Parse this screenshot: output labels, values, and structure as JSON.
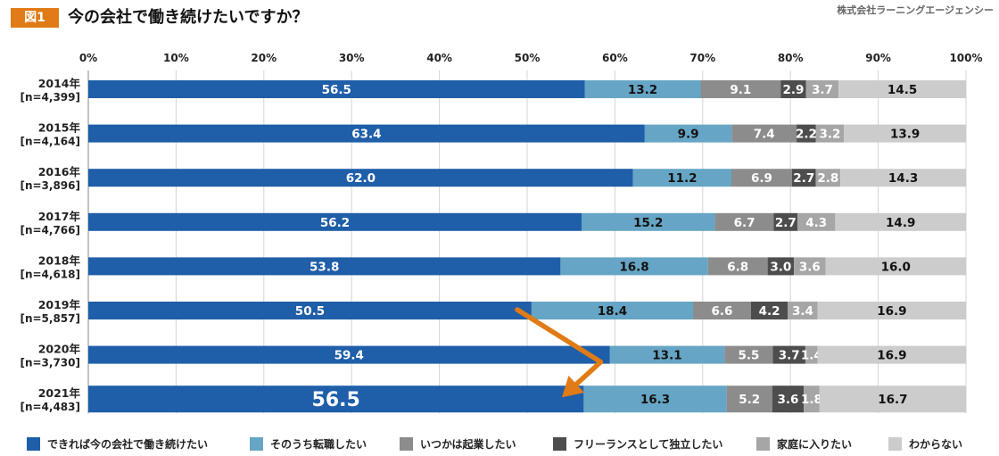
{
  "header": {
    "figure_label": "図1",
    "title": "今の会社で働き続けたいですか？",
    "source": "株式会社ラーニングエージェンシー"
  },
  "chart_data": {
    "type": "bar",
    "orientation": "horizontal",
    "stacked": true,
    "percent_stacked": true,
    "xlim": [
      0,
      100
    ],
    "x_ticks": [
      "0%",
      "10%",
      "20%",
      "30%",
      "40%",
      "50%",
      "60%",
      "70%",
      "80%",
      "90%",
      "100%"
    ],
    "categories": [
      {
        "year": "2014年",
        "n": "[n=4,399]"
      },
      {
        "year": "2015年",
        "n": "[n=4,164]"
      },
      {
        "year": "2016年",
        "n": "[n=3,896]"
      },
      {
        "year": "2017年",
        "n": "[n=4,766]"
      },
      {
        "year": "2018年",
        "n": "[n=4,618]"
      },
      {
        "year": "2019年",
        "n": "[n=5,857]"
      },
      {
        "year": "2020年",
        "n": "[n=3,730]"
      },
      {
        "year": "2021年",
        "n": "[n=4,483]"
      }
    ],
    "series": [
      {
        "name": "できれば今の会社で働き続けたい",
        "color": "#1f5ea8",
        "label_color": "#ffffff",
        "values": [
          56.5,
          63.4,
          62.0,
          56.2,
          53.8,
          50.5,
          59.4,
          56.5
        ],
        "labels": [
          "56.5",
          "63.4",
          "62.0",
          "56.2",
          "53.8",
          "50.5",
          "59.4",
          "56.5"
        ]
      },
      {
        "name": "そのうち転職したい",
        "color": "#66a5c5",
        "label_color": "#111111",
        "values": [
          13.2,
          9.9,
          11.2,
          15.2,
          16.8,
          18.4,
          13.1,
          16.3
        ],
        "labels": [
          "13.2",
          "9.9",
          "11.2",
          "15.2",
          "16.8",
          "18.4",
          "13.1",
          "16.3"
        ]
      },
      {
        "name": "いつかは起業したい",
        "color": "#8c8c8c",
        "label_color": "#ffffff",
        "values": [
          9.1,
          7.4,
          6.9,
          6.7,
          6.8,
          6.6,
          5.5,
          5.2
        ],
        "labels": [
          "9.1",
          "7.4",
          "6.9",
          "6.7",
          "6.8",
          "6.6",
          "5.5",
          "5.2"
        ]
      },
      {
        "name": "フリーランスとして独立したい",
        "color": "#4d4d4d",
        "label_color": "#ffffff",
        "values": [
          2.9,
          2.2,
          2.7,
          2.7,
          3.0,
          4.2,
          3.7,
          3.6
        ],
        "labels": [
          "2.9",
          "2.2",
          "2.7",
          "2.7",
          "3.0",
          "4.2",
          "3.7",
          "3.6"
        ]
      },
      {
        "name": "家庭に入りたい",
        "color": "#a6a6a6",
        "label_color": "#ffffff",
        "values": [
          3.7,
          3.2,
          2.8,
          4.3,
          3.6,
          3.4,
          1.4,
          1.8
        ],
        "labels": [
          "3.7",
          "3.2",
          "2.8",
          "4.3",
          "3.6",
          "3.4",
          "1.4",
          "1.8"
        ]
      },
      {
        "name": "わからない",
        "color": "#cccccc",
        "label_color": "#111111",
        "values": [
          14.5,
          13.9,
          14.3,
          14.9,
          16.0,
          16.9,
          16.9,
          16.7
        ],
        "labels": [
          "14.5",
          "13.9",
          "14.3",
          "14.9",
          "16.0",
          "16.9",
          "16.9",
          "16.7"
        ]
      }
    ],
    "highlight": {
      "category_index": 7,
      "series_index": 0
    },
    "annotation": {
      "type": "arrow",
      "color": "#e07b16",
      "from_category": 5,
      "to_category": 7
    },
    "grid": true,
    "legend_position": "bottom"
  }
}
